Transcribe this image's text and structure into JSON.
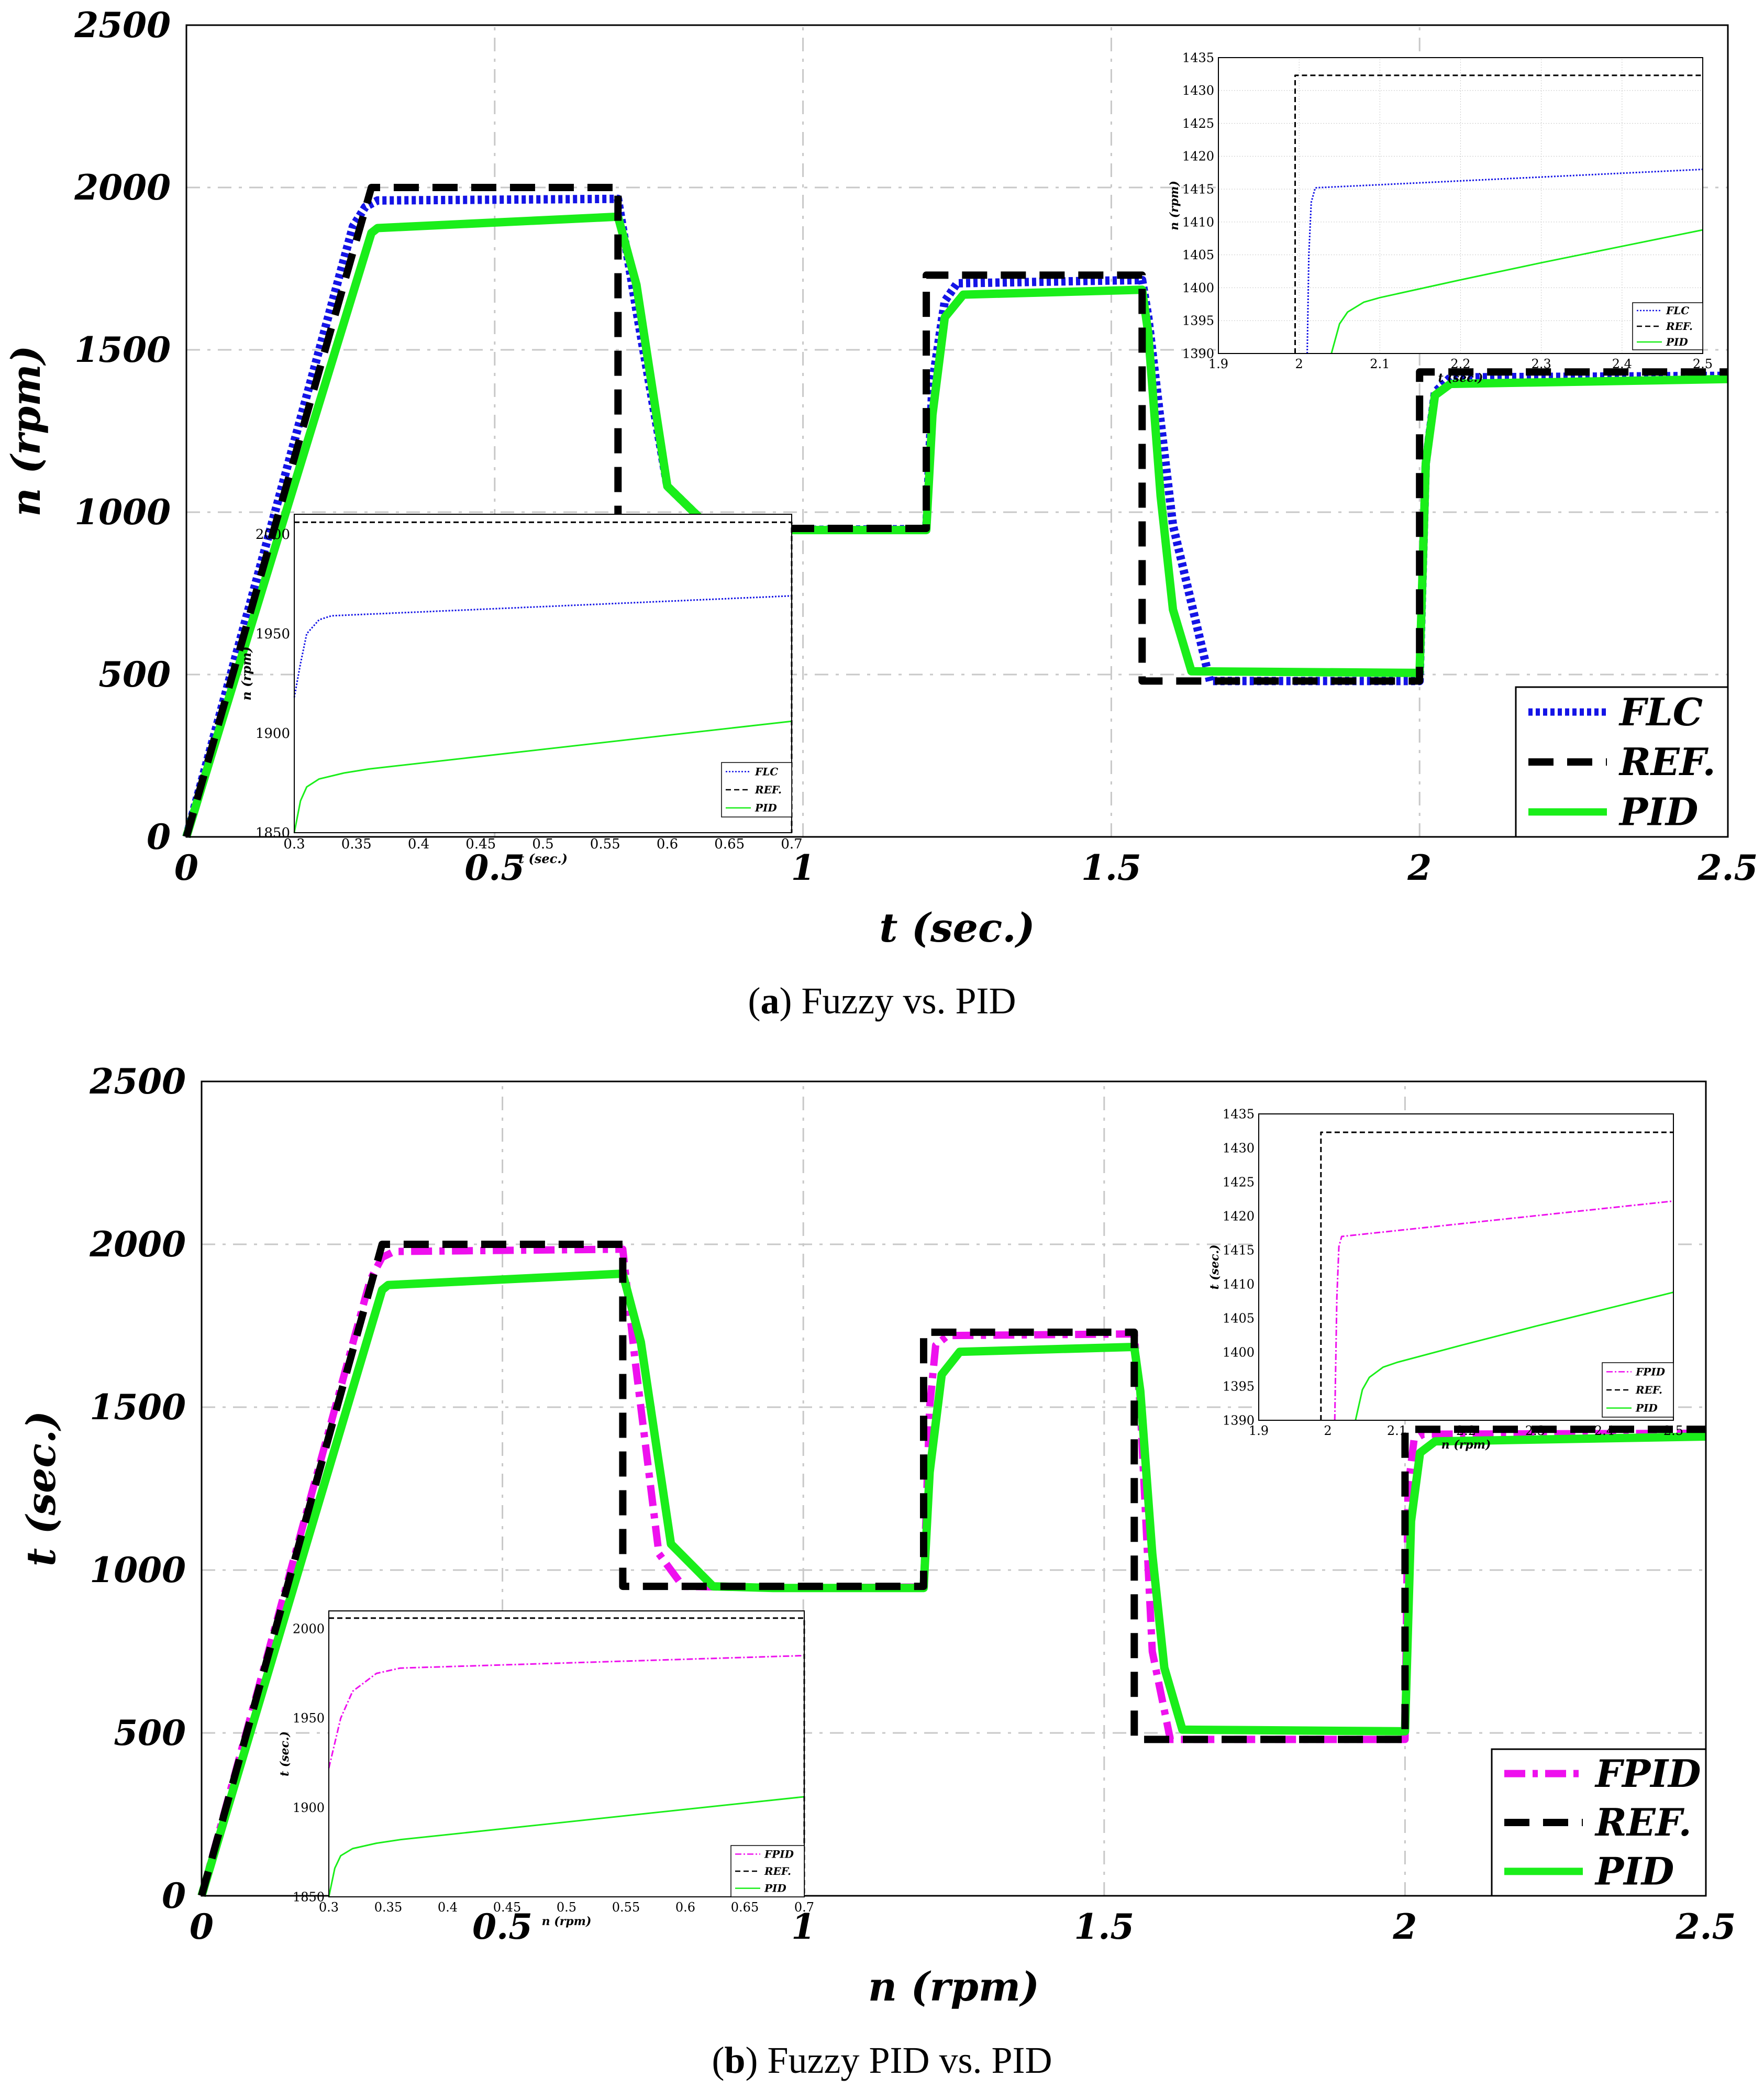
{
  "captions": {
    "a": {
      "letter": "a",
      "text": "Fuzzy vs. PID"
    },
    "b": {
      "letter": "b",
      "text": "Fuzzy PID vs. PID"
    }
  },
  "colors": {
    "flc": "#1414e6",
    "ref": "#000000",
    "pid": "#1aee1a",
    "fpid": "#ee10ee",
    "grid": "#c8c8c8"
  },
  "chart_data": [
    {
      "id": "a_main",
      "type": "line",
      "xlabel": "t (sec.)",
      "ylabel": "n (rpm)",
      "xlim": [
        0,
        2.5
      ],
      "ylim": [
        0,
        2500
      ],
      "xticks": [
        0,
        0.5,
        1,
        1.5,
        2,
        2.5
      ],
      "xtick_labels": [
        "0",
        "0.5",
        "1",
        "1.5",
        "2",
        "2.5"
      ],
      "yticks": [
        0,
        500,
        1000,
        1500,
        2000,
        2500
      ],
      "ytick_labels": [
        "0",
        "500",
        "1000",
        "1500",
        "2000",
        "2500"
      ],
      "grid": true,
      "legend_position": "bottom-right",
      "series": [
        {
          "name": "FLC",
          "style": "dotted",
          "color": "#1414e6",
          "x": [
            0,
            0.27,
            0.29,
            0.31,
            0.7,
            0.73,
            0.78,
            0.85,
            0.95,
            1.2,
            1.21,
            1.23,
            1.25,
            1.55,
            1.56,
            1.6,
            1.66,
            2.0,
            2.01,
            2.025,
            2.05,
            2.5
          ],
          "y": [
            0,
            1880,
            1940,
            1960,
            1965,
            1620,
            1080,
            950,
            945,
            948,
            1400,
            1650,
            1705,
            1715,
            1600,
            960,
            480,
            480,
            1150,
            1370,
            1415,
            1420
          ]
        },
        {
          "name": "REF.",
          "style": "dashed",
          "color": "#000000",
          "x": [
            0,
            0.3,
            0.7,
            0.7,
            0.95,
            0.95,
            1.2,
            1.2,
            1.55,
            1.55,
            2.0,
            2.0,
            2.5
          ],
          "y": [
            0,
            2000,
            2000,
            950,
            950,
            950,
            950,
            1730,
            1730,
            480,
            480,
            1432,
            1432
          ]
        },
        {
          "name": "PID",
          "style": "solid",
          "color": "#1aee1a",
          "x": [
            0,
            0.3,
            0.31,
            0.7,
            0.73,
            0.78,
            0.85,
            0.95,
            1.2,
            1.21,
            1.23,
            1.26,
            1.55,
            1.56,
            1.58,
            1.6,
            1.63,
            2.0,
            2.01,
            2.025,
            2.05,
            2.5
          ],
          "y": [
            0,
            1860,
            1875,
            1910,
            1700,
            1080,
            950,
            945,
            945,
            1300,
            1600,
            1670,
            1685,
            1550,
            1050,
            700,
            510,
            505,
            1150,
            1360,
            1395,
            1410
          ]
        }
      ]
    },
    {
      "id": "a_inset_top_right",
      "type": "line",
      "xlabel": "t (sec.)",
      "ylabel": "n (rpm)",
      "xlim": [
        1.9,
        2.5
      ],
      "ylim": [
        1390,
        1435
      ],
      "xticks": [
        1.9,
        2,
        2.1,
        2.2,
        2.3,
        2.4,
        2.5
      ],
      "xtick_labels": [
        "1.9",
        "2",
        "2.1",
        "2.2",
        "2.3",
        "2.4",
        "2.5"
      ],
      "yticks": [
        1390,
        1395,
        1400,
        1405,
        1410,
        1415,
        1420,
        1425,
        1430,
        1435
      ],
      "ytick_labels": [
        "1390",
        "1395",
        "1400",
        "1405",
        "1410",
        "1415",
        "1420",
        "1425",
        "1430",
        "1435"
      ],
      "grid": true,
      "legend_position": "bottom-right",
      "series": [
        {
          "name": "FLC",
          "style": "dotted",
          "color": "#1414e6",
          "x": [
            2.01,
            2.012,
            2.015,
            2.02,
            2.5
          ],
          "y": [
            1390,
            1405,
            1413,
            1415.2,
            1418
          ]
        },
        {
          "name": "REF.",
          "style": "dashed",
          "color": "#000000",
          "x": [
            1.995,
            1.995,
            2.5
          ],
          "y": [
            1390,
            1432.3,
            1432.3
          ]
        },
        {
          "name": "PID",
          "style": "solid",
          "color": "#1aee1a",
          "x": [
            2.04,
            2.05,
            2.06,
            2.08,
            2.1,
            2.2,
            2.3,
            2.4,
            2.5
          ],
          "y": [
            1390,
            1394.5,
            1396.3,
            1397.8,
            1398.5,
            1401.2,
            1403.8,
            1406.3,
            1408.8
          ]
        }
      ]
    },
    {
      "id": "a_inset_bottom_left",
      "type": "line",
      "xlabel": "t (sec.)",
      "ylabel": "n (rpm)",
      "xlim": [
        0.3,
        0.7
      ],
      "ylim": [
        1850,
        2010
      ],
      "xticks": [
        0.3,
        0.35,
        0.4,
        0.45,
        0.5,
        0.55,
        0.6,
        0.65,
        0.7
      ],
      "xtick_labels": [
        "0.3",
        "0.35",
        "0.4",
        "0.45",
        "0.5",
        "0.55",
        "0.6",
        "0.65",
        "0.7"
      ],
      "yticks": [
        1850,
        1900,
        1950,
        2000
      ],
      "ytick_labels": [
        "1850",
        "1900",
        "1950",
        "2000"
      ],
      "grid": false,
      "legend_position": "bottom-right",
      "series": [
        {
          "name": "FLC",
          "style": "dotted",
          "color": "#1414e6",
          "x": [
            0.3,
            0.305,
            0.31,
            0.32,
            0.33,
            0.7
          ],
          "y": [
            1918,
            1935,
            1950,
            1957,
            1959,
            1969
          ]
        },
        {
          "name": "REF.",
          "style": "dashed",
          "color": "#000000",
          "x": [
            0.3,
            0.7,
            0.7
          ],
          "y": [
            2006,
            2006,
            1850
          ]
        },
        {
          "name": "PID",
          "style": "solid",
          "color": "#1aee1a",
          "x": [
            0.3,
            0.305,
            0.31,
            0.32,
            0.34,
            0.36,
            0.7
          ],
          "y": [
            1850,
            1866,
            1873,
            1877,
            1880,
            1882,
            1906
          ]
        }
      ]
    },
    {
      "id": "b_main",
      "type": "line",
      "xlabel": "n (rpm)",
      "ylabel": "t (sec.)",
      "xlim": [
        0,
        2.5
      ],
      "ylim": [
        0,
        2500
      ],
      "xticks": [
        0,
        0.5,
        1,
        1.5,
        2,
        2.5
      ],
      "xtick_labels": [
        "0",
        "0.5",
        "1",
        "1.5",
        "2",
        "2.5"
      ],
      "yticks": [
        0,
        500,
        1000,
        1500,
        2000,
        2500
      ],
      "ytick_labels": [
        "0",
        "500",
        "1000",
        "1500",
        "2000",
        "2500"
      ],
      "grid": true,
      "legend_position": "bottom-right",
      "series": [
        {
          "name": "FPID",
          "style": "dashdot",
          "color": "#ee10ee",
          "x": [
            0,
            0.28,
            0.3,
            0.32,
            0.7,
            0.72,
            0.76,
            0.8,
            0.95,
            1.2,
            1.21,
            1.22,
            1.24,
            1.55,
            1.56,
            1.58,
            1.61,
            2.0,
            2.005,
            2.015,
            2.03,
            2.5
          ],
          "y": [
            0,
            1890,
            1960,
            1978,
            1985,
            1650,
            1050,
            950,
            945,
            948,
            1500,
            1690,
            1720,
            1725,
            1500,
            750,
            480,
            480,
            1250,
            1400,
            1417,
            1420
          ]
        },
        {
          "name": "REF.",
          "style": "dashed",
          "color": "#000000",
          "x": [
            0,
            0.3,
            0.7,
            0.7,
            0.95,
            0.95,
            1.2,
            1.2,
            1.55,
            1.55,
            2.0,
            2.0,
            2.5
          ],
          "y": [
            0,
            2000,
            2000,
            950,
            950,
            950,
            950,
            1730,
            1730,
            480,
            480,
            1432,
            1432
          ]
        },
        {
          "name": "PID",
          "style": "solid",
          "color": "#1aee1a",
          "x": [
            0,
            0.3,
            0.31,
            0.7,
            0.73,
            0.78,
            0.85,
            0.95,
            1.2,
            1.21,
            1.23,
            1.26,
            1.55,
            1.56,
            1.58,
            1.6,
            1.63,
            2.0,
            2.01,
            2.025,
            2.05,
            2.5
          ],
          "y": [
            0,
            1860,
            1875,
            1910,
            1700,
            1080,
            950,
            945,
            945,
            1300,
            1600,
            1670,
            1685,
            1550,
            1050,
            700,
            510,
            505,
            1150,
            1360,
            1395,
            1410
          ]
        }
      ]
    },
    {
      "id": "b_inset_top_right",
      "type": "line",
      "xlabel": "n (rpm)",
      "ylabel": "t (sec.)",
      "xlim": [
        1.9,
        2.5
      ],
      "ylim": [
        1390,
        1435
      ],
      "xticks": [
        1.9,
        2,
        2.1,
        2.2,
        2.3,
        2.4,
        2.5
      ],
      "xtick_labels": [
        "1.9",
        "2",
        "2.1",
        "2.2",
        "2.3",
        "2.4",
        "2.5"
      ],
      "yticks": [
        1390,
        1395,
        1400,
        1405,
        1410,
        1415,
        1420,
        1425,
        1430,
        1435
      ],
      "ytick_labels": [
        "1390",
        "1395",
        "1400",
        "1405",
        "1410",
        "1415",
        "1420",
        "1425",
        "1430",
        "1435"
      ],
      "grid": false,
      "legend_position": "bottom-right",
      "series": [
        {
          "name": "FPID",
          "style": "dashdot",
          "color": "#ee10ee",
          "x": [
            2.01,
            2.013,
            2.016,
            2.02,
            2.5
          ],
          "y": [
            1390,
            1408,
            1415.5,
            1417,
            1422.2
          ]
        },
        {
          "name": "REF.",
          "style": "dashed",
          "color": "#000000",
          "x": [
            1.99,
            1.99,
            2.5
          ],
          "y": [
            1390,
            1432.3,
            1432.3
          ]
        },
        {
          "name": "PID",
          "style": "solid",
          "color": "#1aee1a",
          "x": [
            2.04,
            2.05,
            2.06,
            2.08,
            2.1,
            2.2,
            2.3,
            2.4,
            2.5
          ],
          "y": [
            1390,
            1394.5,
            1396.3,
            1397.8,
            1398.5,
            1401.2,
            1403.8,
            1406.3,
            1408.8
          ]
        }
      ]
    },
    {
      "id": "b_inset_bottom_left",
      "type": "line",
      "xlabel": "n (rpm)",
      "ylabel": "t (sec.)",
      "xlim": [
        0.3,
        0.7
      ],
      "ylim": [
        1850,
        2010
      ],
      "xticks": [
        0.3,
        0.35,
        0.4,
        0.45,
        0.5,
        0.55,
        0.6,
        0.65,
        0.7
      ],
      "xtick_labels": [
        "0.3",
        "0.35",
        "0.4",
        "0.45",
        "0.5",
        "0.55",
        "0.6",
        "0.65",
        "0.7"
      ],
      "yticks": [
        1850,
        1900,
        1950,
        2000
      ],
      "ytick_labels": [
        "1850",
        "1900",
        "1950",
        "2000"
      ],
      "grid": false,
      "legend_position": "bottom-right",
      "series": [
        {
          "name": "FPID",
          "style": "dashdot",
          "color": "#ee10ee",
          "x": [
            0.3,
            0.31,
            0.32,
            0.34,
            0.36,
            0.7
          ],
          "y": [
            1922,
            1950,
            1965,
            1975,
            1978,
            1985
          ]
        },
        {
          "name": "REF.",
          "style": "dashed",
          "color": "#000000",
          "x": [
            0.3,
            0.7,
            0.7
          ],
          "y": [
            2006,
            2006,
            1850
          ]
        },
        {
          "name": "PID",
          "style": "solid",
          "color": "#1aee1a",
          "x": [
            0.3,
            0.305,
            0.31,
            0.32,
            0.34,
            0.36,
            0.7
          ],
          "y": [
            1850,
            1866,
            1873,
            1877,
            1880,
            1882,
            1906
          ]
        }
      ]
    }
  ]
}
